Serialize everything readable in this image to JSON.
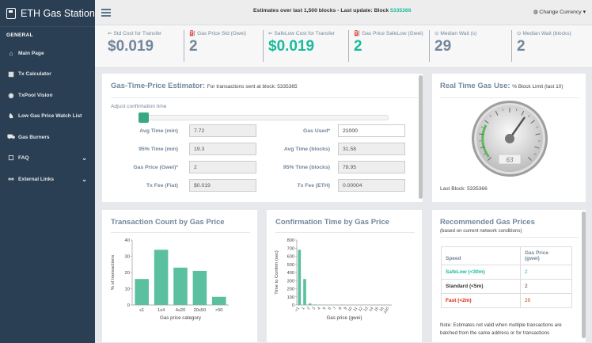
{
  "app": {
    "title": "ETH Gas Station"
  },
  "sidebar": {
    "section": "GENERAL",
    "items": [
      {
        "icon": "⌂",
        "label": "Main Page"
      },
      {
        "icon": "▦",
        "label": "Tx Calculator"
      },
      {
        "icon": "◉",
        "label": "TxPool Vision"
      },
      {
        "icon": "♞",
        "label": "Low Gas Price Watch List"
      },
      {
        "icon": "⛟",
        "label": "Gas Burners"
      },
      {
        "icon": "☐",
        "label": "FAQ",
        "chevron": "⌄"
      },
      {
        "icon": "⚯",
        "label": "External Links",
        "chevron": "⌄"
      }
    ]
  },
  "topbar": {
    "message": "Estimates over last 1,500 blocks - Last update: Block ",
    "block": "5335366",
    "currency": "Change Currency"
  },
  "stats": [
    {
      "icon": "⇐",
      "label": "Std Cost for Transfer",
      "value": "$0.019",
      "color": "#73879c"
    },
    {
      "icon": "⛽",
      "label": "Gas Price Std (Gwei)",
      "value": "2",
      "color": "#73879c"
    },
    {
      "icon": "⇐",
      "label": "SafeLow Cost for Transfer",
      "value": "$0.019",
      "color": "#1abb9c"
    },
    {
      "icon": "⛽",
      "label": "Gas Price SafeLow (Gwei)",
      "value": "2",
      "color": "#1abb9c"
    },
    {
      "icon": "⊙",
      "label": "Median Wait (s)",
      "value": "29",
      "color": "#73879c"
    },
    {
      "icon": "⊙",
      "label": "Median Wait (blocks)",
      "value": "2",
      "color": "#73879c"
    }
  ],
  "estimator": {
    "title": "Gas-Time-Price Estimator:",
    "subtitle": "For transactions sent at block: 5335365",
    "slider_label": "Adjust confirmation time",
    "slider_value": 0.0,
    "left": [
      {
        "label": "Avg Time (min)",
        "value": "7.72"
      },
      {
        "label": "95% Time (min)",
        "value": "19.3"
      },
      {
        "label": "Gas Price (Gwei)*",
        "value": "2"
      },
      {
        "label": "Tx Fee (Fiat)",
        "value": "$0.019"
      }
    ],
    "right": [
      {
        "label": "Gas Used*",
        "value": "21000"
      },
      {
        "label": "Avg Time (blocks)",
        "value": "31.58"
      },
      {
        "label": "95% Time (blocks)",
        "value": "78.95"
      },
      {
        "label": "Tx Fee (ETH)",
        "value": "0.00004"
      }
    ]
  },
  "gas_use": {
    "title": "Real Time Gas Use:",
    "subtitle": "% Block Limit (last 10)",
    "gauge_value": "63",
    "gauge_percent": 63,
    "last_block": "Last Block: 5335366"
  },
  "recommended": {
    "title": "Recommended Gas Prices",
    "subtitle": "(based on current network conditions)",
    "col_speed": "Speed",
    "col_price": "Gas Price",
    "col_price_unit": "(gwei)",
    "rows": [
      {
        "speed": "SafeLow (<30m)",
        "price": "2",
        "color": "#1abb9c"
      },
      {
        "speed": "Standard (<5m)",
        "price": "2",
        "color": "#333333"
      },
      {
        "speed": "Fast (<2m)",
        "price": "20",
        "color": "#d9230f"
      }
    ],
    "note": "Note: Estimates not valid when multiple transactions are batched from the same address or for transactions"
  },
  "chart_data": [
    {
      "type": "bar",
      "title": "Transaction Count by Gas Price",
      "categories": [
        "≤1",
        "1≤4",
        "4≤20",
        "20≤50",
        ">50"
      ],
      "values": [
        16,
        34,
        23,
        21,
        5
      ],
      "xlabel": "Gas price category",
      "ylabel": "% of transactions",
      "ylim": [
        0,
        40
      ],
      "yticks": [
        0,
        10,
        20,
        30,
        40
      ],
      "color": "#5bc0a0"
    },
    {
      "type": "bar",
      "title": "Confirmation Time by Gas Price",
      "categories": [
        "<1",
        "1",
        "2",
        "3",
        "4",
        "5",
        "6",
        "7",
        "8",
        "9",
        "10",
        "11",
        "12",
        "13",
        "14",
        "15",
        "16",
        "≥20"
      ],
      "values": [
        680,
        320,
        18,
        6,
        4,
        3,
        2,
        2,
        2,
        2,
        1,
        1,
        1,
        1,
        1,
        1,
        1,
        1
      ],
      "xlabel": "Gas price (gwei)",
      "ylabel": "Time to Confirm (sec)",
      "ylim": [
        0,
        800
      ],
      "yticks": [
        0,
        100,
        200,
        300,
        400,
        500,
        600,
        700,
        800
      ],
      "color": "#5bc0a0"
    }
  ]
}
